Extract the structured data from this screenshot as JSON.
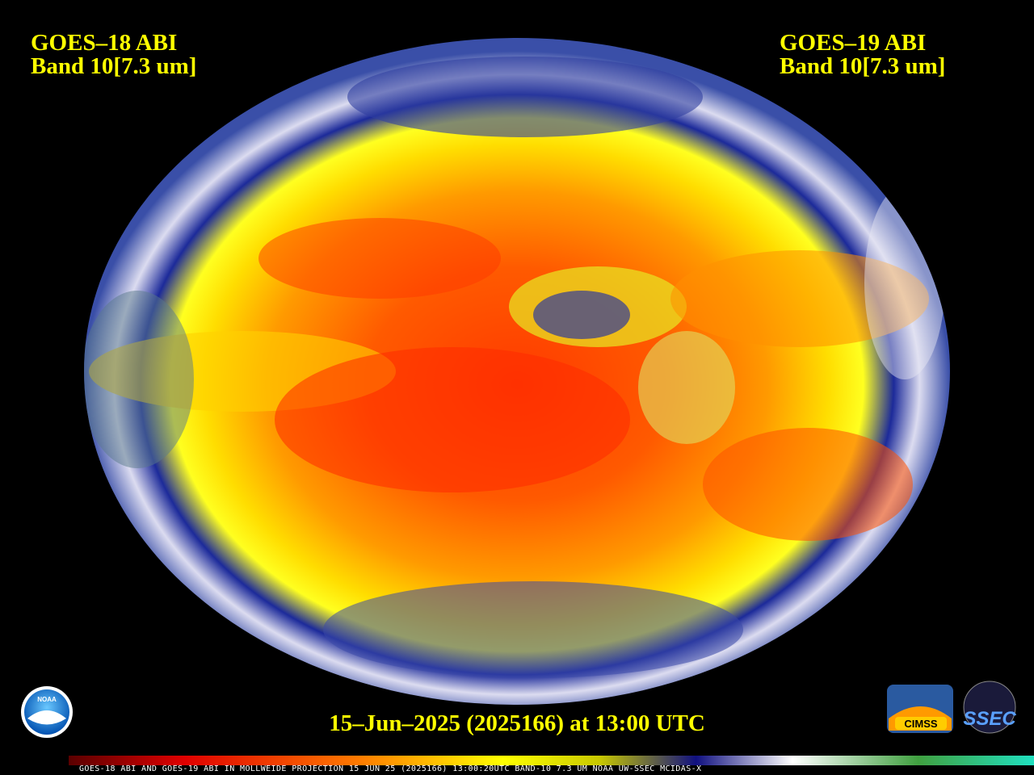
{
  "header": {
    "left": {
      "line1": "GOES–18 ABI",
      "line2": "Band 10[7.3 um]"
    },
    "right": {
      "line1": "GOES–19 ABI",
      "line2": "Band 10[7.3 um]"
    }
  },
  "timestamp": "15–Jun–2025 (2025166) at 13:00 UTC",
  "logos": {
    "noaa": "NOAA",
    "cimss": "CIMSS",
    "ssec": "SSEC"
  },
  "footer": "GOES-18 ABI AND GOES-19 ABI IN MOLLWEIDE PROJECTION 15 JUN 25 (2025166) 13:00:20UTC BAND-10 7.3 UM NOAA UW-SSEC MCIDAS-X"
}
